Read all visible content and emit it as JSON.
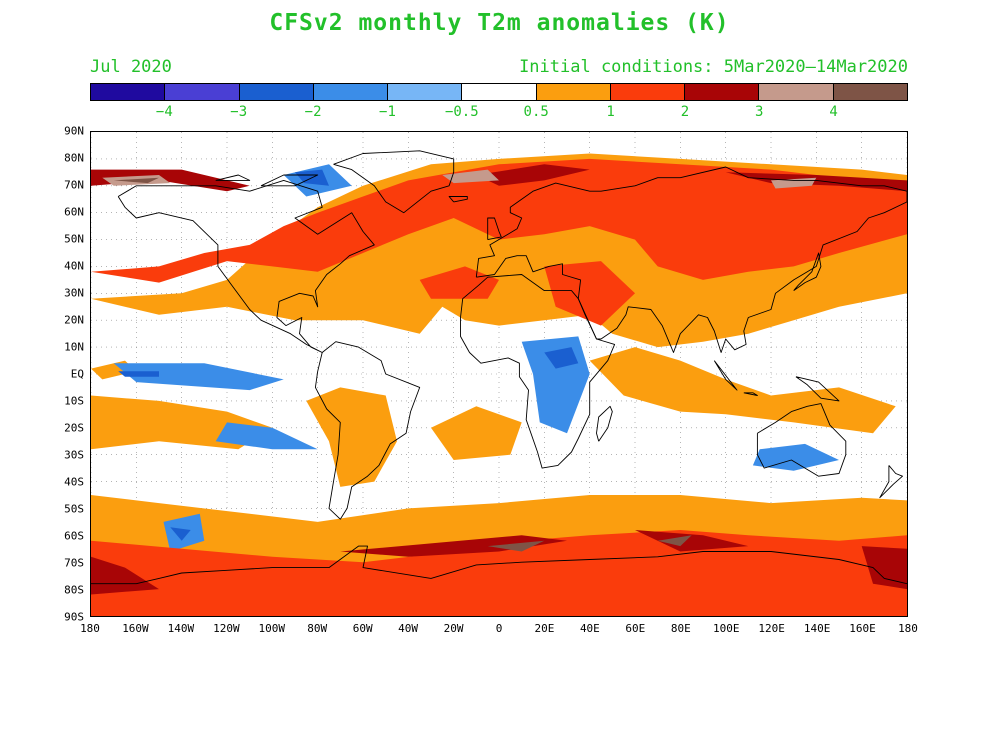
{
  "title": "CFSv2 monthly T2m anomalies (K)",
  "valid_month": "Jul 2020",
  "initial_conditions": "Initial conditions: 5Mar2020–14Mar2020",
  "colorbar": {
    "swatches": [
      "#1f0a9f",
      "#4a3fd4",
      "#1a5fd0",
      "#3b8de8",
      "#77b6f6",
      "#ffffff",
      "#fb9e0f",
      "#fa3c0c",
      "#a80506",
      "#c59a8c",
      "#7e5446"
    ],
    "labels": [
      "−4",
      "−3",
      "−2",
      "−1",
      "−0.5",
      "0.5",
      "1",
      "2",
      "3",
      "4"
    ]
  },
  "lat_labels": [
    "90N",
    "80N",
    "70N",
    "60N",
    "50N",
    "40N",
    "30N",
    "20N",
    "10N",
    "EQ",
    "10S",
    "20S",
    "30S",
    "40S",
    "50S",
    "60S",
    "70S",
    "80S",
    "90S"
  ],
  "lon_labels": [
    "180",
    "160W",
    "140W",
    "120W",
    "100W",
    "80W",
    "60W",
    "40W",
    "20W",
    "0",
    "20E",
    "40E",
    "60E",
    "80E",
    "100E",
    "120E",
    "140E",
    "160E",
    "180"
  ],
  "map_data": {
    "lon_range": [
      -180,
      180
    ],
    "lat_range": [
      -90,
      90
    ],
    "grid": "on",
    "anomaly_regions": [
      {
        "level": 1,
        "poly": [
          [
            -180,
            28
          ],
          [
            -140,
            30
          ],
          [
            -120,
            35
          ],
          [
            -100,
            50
          ],
          [
            -80,
            62
          ],
          [
            -60,
            70
          ],
          [
            -30,
            78
          ],
          [
            0,
            80
          ],
          [
            40,
            82
          ],
          [
            80,
            80
          ],
          [
            120,
            78
          ],
          [
            160,
            76
          ],
          [
            180,
            74
          ],
          [
            180,
            30
          ],
          [
            150,
            25
          ],
          [
            130,
            20
          ],
          [
            110,
            15
          ],
          [
            90,
            12
          ],
          [
            70,
            10
          ],
          [
            50,
            15
          ],
          [
            40,
            22
          ],
          [
            20,
            20
          ],
          [
            0,
            18
          ],
          [
            -15,
            20
          ],
          [
            -25,
            25
          ],
          [
            -35,
            15
          ],
          [
            -60,
            20
          ],
          [
            -90,
            20
          ],
          [
            -120,
            25
          ],
          [
            -150,
            22
          ]
        ]
      },
      {
        "level": 1,
        "poly": [
          [
            -180,
            -45
          ],
          [
            -150,
            -48
          ],
          [
            -110,
            -52
          ],
          [
            -80,
            -55
          ],
          [
            -40,
            -50
          ],
          [
            0,
            -48
          ],
          [
            40,
            -45
          ],
          [
            80,
            -45
          ],
          [
            120,
            -48
          ],
          [
            160,
            -46
          ],
          [
            180,
            -47
          ],
          [
            180,
            -90
          ],
          [
            -180,
            -90
          ]
        ]
      },
      {
        "level": 1,
        "poly": [
          [
            -180,
            -8
          ],
          [
            -150,
            -10
          ],
          [
            -120,
            -14
          ],
          [
            -100,
            -20
          ],
          [
            -115,
            -28
          ],
          [
            -150,
            -25
          ],
          [
            -180,
            -28
          ]
        ]
      },
      {
        "level": 1,
        "poly": [
          [
            40,
            5
          ],
          [
            60,
            10
          ],
          [
            80,
            5
          ],
          [
            100,
            -2
          ],
          [
            120,
            -8
          ],
          [
            150,
            -5
          ],
          [
            175,
            -12
          ],
          [
            165,
            -22
          ],
          [
            130,
            -18
          ],
          [
            100,
            -15
          ],
          [
            80,
            -14
          ],
          [
            55,
            -8
          ]
        ]
      },
      {
        "level": 1,
        "poly": [
          [
            -85,
            -10
          ],
          [
            -70,
            -5
          ],
          [
            -50,
            -8
          ],
          [
            -45,
            -25
          ],
          [
            -55,
            -40
          ],
          [
            -70,
            -42
          ],
          [
            -75,
            -25
          ]
        ]
      },
      {
        "level": 1,
        "poly": [
          [
            -30,
            -20
          ],
          [
            -10,
            -12
          ],
          [
            10,
            -18
          ],
          [
            5,
            -30
          ],
          [
            -20,
            -32
          ]
        ]
      },
      {
        "level": 1,
        "poly": [
          [
            -180,
            2
          ],
          [
            -165,
            5
          ],
          [
            -160,
            1
          ],
          [
            -175,
            -2
          ]
        ]
      },
      {
        "level": 2,
        "poly": [
          [
            -180,
            38
          ],
          [
            -150,
            40
          ],
          [
            -130,
            45
          ],
          [
            -110,
            48
          ],
          [
            -95,
            55
          ],
          [
            -80,
            60
          ],
          [
            -60,
            66
          ],
          [
            -40,
            72
          ],
          [
            0,
            78
          ],
          [
            40,
            80
          ],
          [
            80,
            78
          ],
          [
            120,
            76
          ],
          [
            160,
            72
          ],
          [
            180,
            70
          ],
          [
            180,
            52
          ],
          [
            150,
            45
          ],
          [
            130,
            40
          ],
          [
            110,
            38
          ],
          [
            90,
            35
          ],
          [
            70,
            40
          ],
          [
            60,
            50
          ],
          [
            40,
            55
          ],
          [
            20,
            52
          ],
          [
            0,
            50
          ],
          [
            -20,
            58
          ],
          [
            -40,
            52
          ],
          [
            -60,
            45
          ],
          [
            -80,
            38
          ],
          [
            -100,
            40
          ],
          [
            -120,
            42
          ],
          [
            -150,
            34
          ]
        ]
      },
      {
        "level": 2,
        "poly": [
          [
            -180,
            -62
          ],
          [
            -140,
            -65
          ],
          [
            -100,
            -68
          ],
          [
            -60,
            -70
          ],
          [
            -20,
            -66
          ],
          [
            10,
            -62
          ],
          [
            40,
            -60
          ],
          [
            80,
            -58
          ],
          [
            110,
            -60
          ],
          [
            150,
            -62
          ],
          [
            180,
            -60
          ],
          [
            180,
            -90
          ],
          [
            -180,
            -90
          ]
        ]
      },
      {
        "level": 2,
        "poly": [
          [
            -35,
            35
          ],
          [
            -15,
            40
          ],
          [
            0,
            35
          ],
          [
            -5,
            28
          ],
          [
            -30,
            28
          ]
        ]
      },
      {
        "level": 2,
        "poly": [
          [
            20,
            40
          ],
          [
            45,
            42
          ],
          [
            60,
            30
          ],
          [
            45,
            18
          ],
          [
            25,
            25
          ]
        ]
      },
      {
        "level": 3,
        "poly": [
          [
            -180,
            70
          ],
          [
            -150,
            72
          ],
          [
            -120,
            68
          ],
          [
            -110,
            70
          ],
          [
            -140,
            76
          ],
          [
            -180,
            76
          ]
        ]
      },
      {
        "level": 3,
        "poly": [
          [
            -10,
            74
          ],
          [
            20,
            78
          ],
          [
            40,
            76
          ],
          [
            20,
            72
          ],
          [
            0,
            70
          ]
        ]
      },
      {
        "level": 3,
        "poly": [
          [
            100,
            75
          ],
          [
            140,
            74
          ],
          [
            180,
            72
          ],
          [
            180,
            68
          ],
          [
            150,
            70
          ],
          [
            120,
            71
          ]
        ]
      },
      {
        "level": 3,
        "poly": [
          [
            -180,
            -68
          ],
          [
            -165,
            -72
          ],
          [
            -150,
            -80
          ],
          [
            -180,
            -82
          ]
        ]
      },
      {
        "level": 3,
        "poly": [
          [
            -70,
            -66
          ],
          [
            -30,
            -63
          ],
          [
            10,
            -60
          ],
          [
            30,
            -62
          ],
          [
            0,
            -66
          ],
          [
            -40,
            -68
          ]
        ]
      },
      {
        "level": 3,
        "poly": [
          [
            60,
            -58
          ],
          [
            90,
            -60
          ],
          [
            110,
            -64
          ],
          [
            80,
            -66
          ]
        ]
      },
      {
        "level": 3,
        "poly": [
          [
            160,
            -64
          ],
          [
            180,
            -65
          ],
          [
            180,
            -80
          ],
          [
            165,
            -78
          ]
        ]
      },
      {
        "level": 4,
        "poly": [
          [
            -175,
            73
          ],
          [
            -150,
            74
          ],
          [
            -145,
            71
          ],
          [
            -170,
            70
          ]
        ]
      },
      {
        "level": 4,
        "poly": [
          [
            -25,
            74
          ],
          [
            -5,
            76
          ],
          [
            0,
            72
          ],
          [
            -20,
            71
          ]
        ]
      },
      {
        "level": 4,
        "poly": [
          [
            120,
            72
          ],
          [
            140,
            73
          ],
          [
            138,
            70
          ],
          [
            122,
            69
          ]
        ]
      },
      {
        "level": 5,
        "poly": [
          [
            -170,
            72
          ],
          [
            -150,
            73
          ],
          [
            -155,
            71
          ]
        ]
      },
      {
        "level": 5,
        "poly": [
          [
            -5,
            -64
          ],
          [
            20,
            -62
          ],
          [
            10,
            -66
          ]
        ]
      },
      {
        "level": 5,
        "poly": [
          [
            70,
            -62
          ],
          [
            85,
            -60
          ],
          [
            80,
            -64
          ]
        ]
      },
      {
        "level": -1,
        "poly": [
          [
            -170,
            4
          ],
          [
            -130,
            4
          ],
          [
            -95,
            -2
          ],
          [
            -110,
            -6
          ],
          [
            -160,
            -3
          ]
        ]
      },
      {
        "level": -1,
        "poly": [
          [
            -120,
            -18
          ],
          [
            -100,
            -20
          ],
          [
            -80,
            -28
          ],
          [
            -100,
            -28
          ],
          [
            -125,
            -25
          ]
        ]
      },
      {
        "level": -1,
        "poly": [
          [
            10,
            12
          ],
          [
            35,
            14
          ],
          [
            40,
            0
          ],
          [
            30,
            -22
          ],
          [
            18,
            -18
          ],
          [
            15,
            0
          ]
        ]
      },
      {
        "level": -1,
        "poly": [
          [
            115,
            -28
          ],
          [
            135,
            -26
          ],
          [
            150,
            -32
          ],
          [
            130,
            -36
          ],
          [
            112,
            -34
          ]
        ]
      },
      {
        "level": -1,
        "poly": [
          [
            -148,
            -55
          ],
          [
            -132,
            -52
          ],
          [
            -130,
            -62
          ],
          [
            -145,
            -66
          ]
        ]
      },
      {
        "level": -1,
        "poly": [
          [
            -95,
            74
          ],
          [
            -75,
            78
          ],
          [
            -65,
            70
          ],
          [
            -85,
            66
          ]
        ]
      },
      {
        "level": -2,
        "poly": [
          [
            -90,
            75
          ],
          [
            -78,
            76
          ],
          [
            -75,
            70
          ],
          [
            -86,
            71
          ]
        ]
      },
      {
        "level": -2,
        "poly": [
          [
            20,
            8
          ],
          [
            32,
            10
          ],
          [
            35,
            4
          ],
          [
            25,
            2
          ]
        ]
      },
      {
        "level": -2,
        "poly": [
          [
            -168,
            1
          ],
          [
            -150,
            1
          ],
          [
            -150,
            -1
          ],
          [
            -165,
            -1
          ]
        ]
      },
      {
        "level": -2,
        "poly": [
          [
            -145,
            -57
          ],
          [
            -136,
            -58
          ],
          [
            -140,
            -62
          ]
        ]
      }
    ]
  }
}
